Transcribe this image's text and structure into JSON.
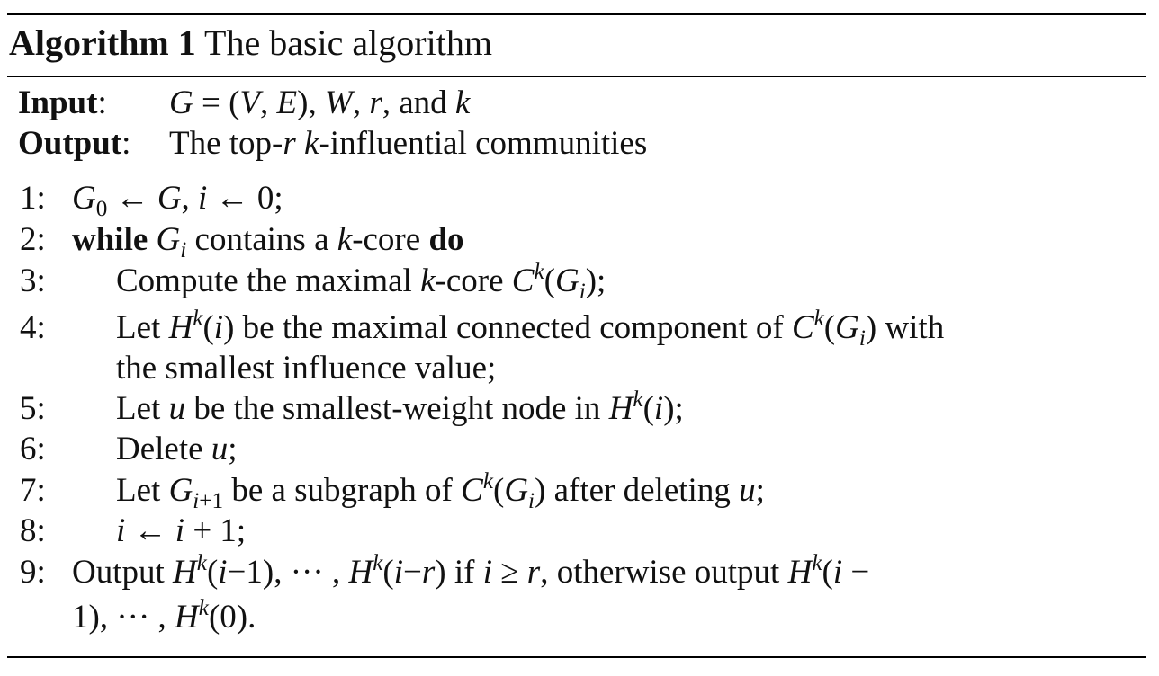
{
  "algorithm": {
    "label": "Algorithm 1",
    "title": "The basic algorithm"
  },
  "io": {
    "input_key": "Input",
    "input_value": "G = (V, E), W, r, and k",
    "output_key": "Output",
    "output_value": "The top-r k-influential communities"
  },
  "steps": [
    {
      "num": "1:",
      "text": "G0 ← G, i ← 0;"
    },
    {
      "num": "2:",
      "text": "while Gi contains a k-core do"
    },
    {
      "num": "3:",
      "text": "Compute the maximal k-core Ck(Gi);"
    },
    {
      "num": "4:",
      "text": "Let Hk(i) be the maximal connected component of Ck(Gi) with the smallest influence value;"
    },
    {
      "num": "5:",
      "text": "Let u be the smallest-weight node in Hk(i);"
    },
    {
      "num": "6:",
      "text": "Delete u;"
    },
    {
      "num": "7:",
      "text": "Let Gi+1 be a subgraph of Ck(Gi) after deleting u;"
    },
    {
      "num": "8:",
      "text": "i ← i + 1;"
    },
    {
      "num": "9:",
      "text": "Output Hk(i−1), ··· , Hk(i−r) if i ≥ r, otherwise output Hk(i − 1), ··· , Hk(0)."
    }
  ]
}
